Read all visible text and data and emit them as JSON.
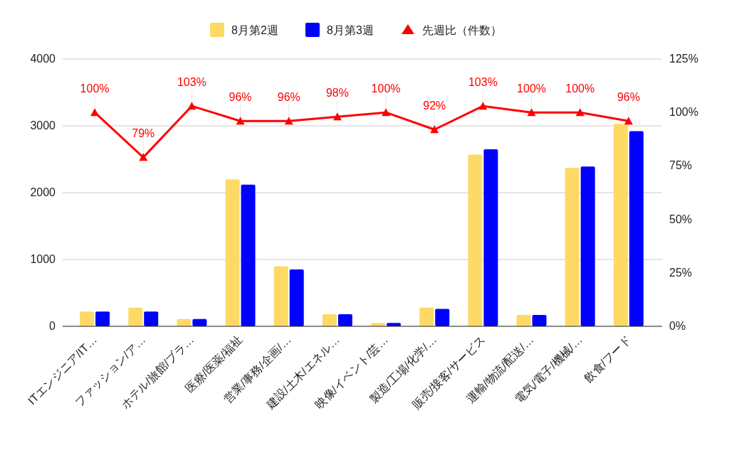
{
  "chart_data": {
    "type": "bar",
    "categories": [
      "ITエンジニア/IT…",
      "ファッション/ア…",
      "ホテル/旅館/ブラ…",
      "医療/医薬/福祉",
      "営業/事務/企画/…",
      "建設/土木/エネル…",
      "映像/イベント/芸…",
      "製造/工場/化学/…",
      "販売/接客/サービス",
      "運輸/物流/配送/…",
      "電気/電子/機械/…",
      "飲食/フード"
    ],
    "series": [
      {
        "name": "8月第2週",
        "color": "#ffd966",
        "values": [
          220,
          280,
          110,
          2200,
          900,
          180,
          50,
          280,
          2570,
          170,
          2370,
          3030
        ]
      },
      {
        "name": "8月第3週",
        "color": "#0000ff",
        "values": [
          220,
          220,
          110,
          2120,
          850,
          180,
          50,
          260,
          2650,
          170,
          2390,
          2920
        ]
      },
      {
        "name": "先週比（件数）",
        "type": "line",
        "axis": "y2",
        "color": "#ff0000",
        "marker": "triangle",
        "values": [
          100,
          79,
          103,
          96,
          96,
          98,
          100,
          92,
          103,
          100,
          100,
          96
        ],
        "value_labels": [
          "100%",
          "79%",
          "103%",
          "96%",
          "96%",
          "98%",
          "100%",
          "92%",
          "103%",
          "100%",
          "100%",
          "96%"
        ]
      }
    ],
    "ylim": [
      0,
      4000
    ],
    "yticks": [
      0,
      1000,
      2000,
      3000,
      4000
    ],
    "y2lim": [
      0,
      125
    ],
    "y2ticks": [
      {
        "value": 0,
        "label": "0%"
      },
      {
        "value": 25,
        "label": "25%"
      },
      {
        "value": 50,
        "label": "50%"
      },
      {
        "value": 75,
        "label": "75%"
      },
      {
        "value": 100,
        "label": "100%"
      },
      {
        "value": 125,
        "label": "125%"
      }
    ],
    "grid": "y",
    "legend": "top"
  }
}
